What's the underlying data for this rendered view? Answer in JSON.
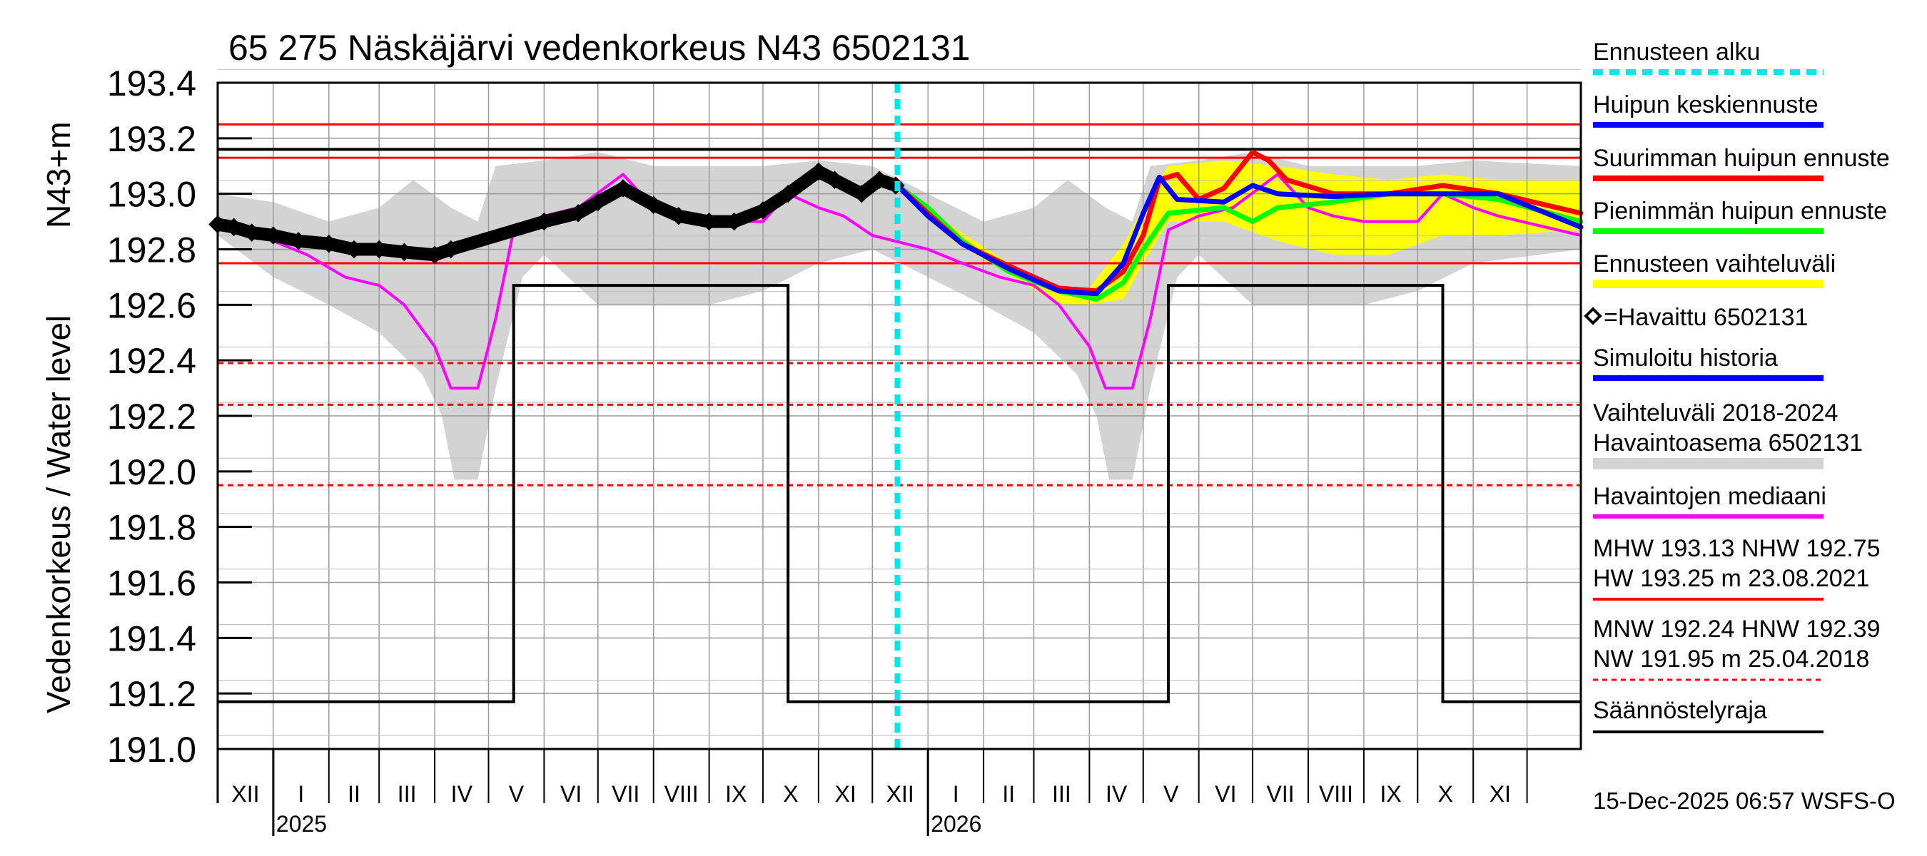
{
  "chart_data": {
    "type": "line",
    "title": "65 275 Näskäjärvi vedenkorkeus N43 6502131",
    "ylabel_main": "Vedenkorkeus / Water level",
    "ylabel_unit": "N43+m",
    "ylim": [
      191.0,
      193.4
    ],
    "y_ticks": [
      "191.0",
      "191.2",
      "191.4",
      "191.6",
      "191.8",
      "192.0",
      "192.2",
      "192.4",
      "192.6",
      "192.8",
      "193.0",
      "193.2",
      "193.4"
    ],
    "x_range": [
      "2024-12-01",
      "2026-12-31"
    ],
    "month_labels": [
      "XII",
      "I",
      "II",
      "III",
      "IV",
      "V",
      "VI",
      "VII",
      "VIII",
      "IX",
      "X",
      "XI",
      "XII",
      "I",
      "II",
      "III",
      "IV",
      "V",
      "VI",
      "VII",
      "VIII",
      "IX",
      "X",
      "XI"
    ],
    "year_labels": [
      {
        "date": "2025-01-01",
        "label": "2025"
      },
      {
        "date": "2026-01-01",
        "label": "2026"
      }
    ],
    "forecast_start": "2025-12-15",
    "reference_lines": {
      "solid_red": [
        193.25,
        193.13,
        192.75
      ],
      "dashed_red": [
        192.39,
        192.24,
        191.95
      ],
      "black_level": 193.16
    },
    "regulation_limit": [
      [
        "2024-12-01",
        191.17
      ],
      [
        "2025-05-15",
        191.17
      ],
      [
        "2025-05-15",
        192.67
      ],
      [
        "2025-10-15",
        192.67
      ],
      [
        "2025-10-15",
        191.17
      ],
      [
        "2026-05-15",
        191.17
      ],
      [
        "2026-05-15",
        192.67
      ],
      [
        "2026-10-15",
        192.67
      ],
      [
        "2026-10-15",
        191.17
      ],
      [
        "2026-12-31",
        191.17
      ]
    ],
    "variation_band": {
      "upper": [
        [
          "2024-12-01",
          193.0
        ],
        [
          "2025-01-01",
          192.97
        ],
        [
          "2025-02-01",
          192.9
        ],
        [
          "2025-03-01",
          192.95
        ],
        [
          "2025-03-20",
          193.05
        ],
        [
          "2025-04-10",
          192.95
        ],
        [
          "2025-04-25",
          192.9
        ],
        [
          "2025-05-05",
          193.1
        ],
        [
          "2025-06-01",
          193.12
        ],
        [
          "2025-07-01",
          193.15
        ],
        [
          "2025-08-01",
          193.1
        ],
        [
          "2025-09-01",
          193.1
        ],
        [
          "2025-10-01",
          193.1
        ],
        [
          "2025-11-01",
          193.12
        ],
        [
          "2025-12-01",
          193.1
        ],
        [
          "2026-01-01",
          193.0
        ],
        [
          "2026-02-01",
          192.9
        ],
        [
          "2026-03-01",
          192.95
        ],
        [
          "2026-03-20",
          193.05
        ],
        [
          "2026-04-10",
          192.95
        ],
        [
          "2026-04-25",
          192.9
        ],
        [
          "2026-05-05",
          193.1
        ],
        [
          "2026-06-01",
          193.12
        ],
        [
          "2026-07-01",
          193.15
        ],
        [
          "2026-08-01",
          193.1
        ],
        [
          "2026-09-01",
          193.1
        ],
        [
          "2026-10-01",
          193.1
        ],
        [
          "2026-11-01",
          193.12
        ],
        [
          "2026-12-31",
          193.1
        ]
      ],
      "lower": [
        [
          "2024-12-01",
          192.85
        ],
        [
          "2025-01-01",
          192.7
        ],
        [
          "2025-02-01",
          192.6
        ],
        [
          "2025-03-01",
          192.5
        ],
        [
          "2025-03-25",
          192.35
        ],
        [
          "2025-04-05",
          192.2
        ],
        [
          "2025-04-12",
          191.97
        ],
        [
          "2025-04-25",
          191.97
        ],
        [
          "2025-05-05",
          192.3
        ],
        [
          "2025-05-20",
          192.7
        ],
        [
          "2025-06-01",
          192.78
        ],
        [
          "2025-07-01",
          192.6
        ],
        [
          "2025-08-01",
          192.6
        ],
        [
          "2025-09-01",
          192.6
        ],
        [
          "2025-10-01",
          192.65
        ],
        [
          "2025-11-01",
          192.75
        ],
        [
          "2025-12-01",
          192.8
        ],
        [
          "2026-01-01",
          192.7
        ],
        [
          "2026-02-01",
          192.6
        ],
        [
          "2026-03-01",
          192.5
        ],
        [
          "2026-03-25",
          192.35
        ],
        [
          "2026-04-05",
          192.2
        ],
        [
          "2026-04-12",
          191.97
        ],
        [
          "2026-04-25",
          191.97
        ],
        [
          "2026-05-05",
          192.3
        ],
        [
          "2026-05-20",
          192.7
        ],
        [
          "2026-06-01",
          192.78
        ],
        [
          "2026-07-01",
          192.6
        ],
        [
          "2026-08-01",
          192.6
        ],
        [
          "2026-09-01",
          192.6
        ],
        [
          "2026-10-01",
          192.65
        ],
        [
          "2026-11-01",
          192.75
        ],
        [
          "2026-12-31",
          192.8
        ]
      ]
    },
    "forecast_band": {
      "upper": [
        [
          "2025-12-15",
          193.03
        ],
        [
          "2026-01-15",
          192.88
        ],
        [
          "2026-02-15",
          192.75
        ],
        [
          "2026-03-15",
          192.66
        ],
        [
          "2026-04-01",
          192.66
        ],
        [
          "2026-04-20",
          192.82
        ],
        [
          "2026-05-01",
          192.95
        ],
        [
          "2026-05-15",
          193.1
        ],
        [
          "2026-06-15",
          193.12
        ],
        [
          "2026-07-15",
          193.1
        ],
        [
          "2026-08-15",
          193.07
        ],
        [
          "2026-09-15",
          193.05
        ],
        [
          "2026-10-15",
          193.07
        ],
        [
          "2026-11-15",
          193.05
        ],
        [
          "2026-12-31",
          193.05
        ]
      ],
      "lower": [
        [
          "2025-12-15",
          193.03
        ],
        [
          "2026-01-15",
          192.83
        ],
        [
          "2026-02-15",
          192.71
        ],
        [
          "2026-03-15",
          192.6
        ],
        [
          "2026-04-01",
          192.6
        ],
        [
          "2026-04-20",
          192.62
        ],
        [
          "2026-05-01",
          192.75
        ],
        [
          "2026-05-15",
          192.9
        ],
        [
          "2026-06-15",
          192.9
        ],
        [
          "2026-07-15",
          192.83
        ],
        [
          "2026-08-15",
          192.78
        ],
        [
          "2026-09-15",
          192.78
        ],
        [
          "2026-10-15",
          192.85
        ],
        [
          "2026-11-15",
          192.85
        ],
        [
          "2026-12-31",
          192.87
        ]
      ]
    },
    "series": [
      {
        "name": "Havaittu 6502131",
        "points": [
          [
            "2024-12-01",
            192.89
          ],
          [
            "2024-12-10",
            192.88
          ],
          [
            "2024-12-20",
            192.86
          ],
          [
            "2025-01-01",
            192.85
          ],
          [
            "2025-01-15",
            192.83
          ],
          [
            "2025-02-01",
            192.82
          ],
          [
            "2025-02-15",
            192.8
          ],
          [
            "2025-03-01",
            192.8
          ],
          [
            "2025-03-15",
            192.79
          ],
          [
            "2025-04-01",
            192.78
          ],
          [
            "2025-04-10",
            192.8
          ],
          [
            "2025-06-01",
            192.9
          ],
          [
            "2025-06-20",
            192.93
          ],
          [
            "2025-07-01",
            192.97
          ],
          [
            "2025-07-15",
            193.02
          ],
          [
            "2025-08-01",
            192.96
          ],
          [
            "2025-08-15",
            192.92
          ],
          [
            "2025-09-01",
            192.9
          ],
          [
            "2025-09-15",
            192.9
          ],
          [
            "2025-10-01",
            192.94
          ],
          [
            "2025-10-15",
            193.0
          ],
          [
            "2025-11-01",
            193.08
          ],
          [
            "2025-11-10",
            193.05
          ],
          [
            "2025-11-25",
            193.0
          ],
          [
            "2025-12-05",
            193.05
          ],
          [
            "2025-12-14",
            193.03
          ]
        ]
      },
      {
        "name": "Simuloitu historia",
        "points": [
          [
            "2025-04-10",
            192.8
          ],
          [
            "2025-05-01",
            192.84
          ],
          [
            "2025-05-20",
            192.88
          ],
          [
            "2025-06-01",
            192.92
          ]
        ]
      },
      {
        "name": "Havaintojen mediaani",
        "points": [
          [
            "2024-12-01",
            192.91
          ],
          [
            "2025-01-01",
            192.83
          ],
          [
            "2025-01-20",
            192.78
          ],
          [
            "2025-02-10",
            192.7
          ],
          [
            "2025-03-01",
            192.67
          ],
          [
            "2025-03-15",
            192.6
          ],
          [
            "2025-04-01",
            192.45
          ],
          [
            "2025-04-10",
            192.3
          ],
          [
            "2025-04-25",
            192.3
          ],
          [
            "2025-05-05",
            192.55
          ],
          [
            "2025-05-15",
            192.87
          ],
          [
            "2025-06-01",
            192.92
          ],
          [
            "2025-06-20",
            192.95
          ],
          [
            "2025-07-15",
            193.07
          ],
          [
            "2025-08-01",
            192.95
          ],
          [
            "2025-08-15",
            192.92
          ],
          [
            "2025-09-01",
            192.9
          ],
          [
            "2025-10-01",
            192.9
          ],
          [
            "2025-10-15",
            193.0
          ],
          [
            "2025-11-01",
            192.95
          ],
          [
            "2025-11-15",
            192.92
          ],
          [
            "2025-12-01",
            192.85
          ],
          [
            "2026-01-01",
            192.8
          ],
          [
            "2026-01-20",
            192.75
          ],
          [
            "2026-02-10",
            192.7
          ],
          [
            "2026-03-01",
            192.67
          ],
          [
            "2026-03-15",
            192.6
          ],
          [
            "2026-04-01",
            192.45
          ],
          [
            "2026-04-10",
            192.3
          ],
          [
            "2026-04-25",
            192.3
          ],
          [
            "2026-05-05",
            192.55
          ],
          [
            "2026-05-15",
            192.87
          ],
          [
            "2026-06-01",
            192.92
          ],
          [
            "2026-06-20",
            192.95
          ],
          [
            "2026-07-15",
            193.07
          ],
          [
            "2026-08-01",
            192.95
          ],
          [
            "2026-08-15",
            192.92
          ],
          [
            "2026-09-01",
            192.9
          ],
          [
            "2026-10-01",
            192.9
          ],
          [
            "2026-10-15",
            193.0
          ],
          [
            "2026-11-01",
            192.95
          ],
          [
            "2026-11-15",
            192.92
          ],
          [
            "2026-12-31",
            192.85
          ]
        ]
      },
      {
        "name": "Pienimmän huipun ennuste",
        "points": [
          [
            "2025-12-15",
            193.03
          ],
          [
            "2026-01-01",
            192.95
          ],
          [
            "2026-01-20",
            192.83
          ],
          [
            "2026-02-15",
            192.72
          ],
          [
            "2026-03-15",
            192.65
          ],
          [
            "2026-04-05",
            192.62
          ],
          [
            "2026-04-20",
            192.68
          ],
          [
            "2026-05-01",
            192.8
          ],
          [
            "2026-05-15",
            192.93
          ],
          [
            "2026-06-15",
            192.95
          ],
          [
            "2026-07-01",
            192.9
          ],
          [
            "2026-07-15",
            192.95
          ],
          [
            "2026-08-15",
            192.97
          ],
          [
            "2026-09-15",
            193.0
          ],
          [
            "2026-10-15",
            193.0
          ],
          [
            "2026-11-15",
            192.98
          ],
          [
            "2026-12-31",
            192.9
          ]
        ]
      },
      {
        "name": "Suurimman huipun ennuste",
        "points": [
          [
            "2025-12-15",
            193.03
          ],
          [
            "2026-01-01",
            192.93
          ],
          [
            "2026-01-20",
            192.82
          ],
          [
            "2026-02-15",
            192.74
          ],
          [
            "2026-03-15",
            192.66
          ],
          [
            "2026-04-05",
            192.65
          ],
          [
            "2026-04-20",
            192.72
          ],
          [
            "2026-05-01",
            192.85
          ],
          [
            "2026-05-10",
            193.05
          ],
          [
            "2026-05-20",
            193.07
          ],
          [
            "2026-06-01",
            192.98
          ],
          [
            "2026-06-15",
            193.02
          ],
          [
            "2026-07-01",
            193.15
          ],
          [
            "2026-07-10",
            193.12
          ],
          [
            "2026-07-20",
            193.05
          ],
          [
            "2026-08-15",
            193.0
          ],
          [
            "2026-09-15",
            193.0
          ],
          [
            "2026-10-15",
            193.03
          ],
          [
            "2026-11-15",
            193.0
          ],
          [
            "2026-12-31",
            192.93
          ]
        ]
      },
      {
        "name": "Huipun keskiennuste",
        "points": [
          [
            "2025-12-15",
            193.03
          ],
          [
            "2026-01-01",
            192.92
          ],
          [
            "2026-01-20",
            192.82
          ],
          [
            "2026-02-15",
            192.73
          ],
          [
            "2026-03-15",
            192.65
          ],
          [
            "2026-04-05",
            192.64
          ],
          [
            "2026-04-20",
            192.75
          ],
          [
            "2026-05-01",
            192.93
          ],
          [
            "2026-05-10",
            193.06
          ],
          [
            "2026-05-20",
            192.98
          ],
          [
            "2026-06-15",
            192.97
          ],
          [
            "2026-07-01",
            193.03
          ],
          [
            "2026-07-15",
            193.0
          ],
          [
            "2026-08-15",
            192.99
          ],
          [
            "2026-09-15",
            193.0
          ],
          [
            "2026-10-15",
            193.0
          ],
          [
            "2026-11-15",
            193.0
          ],
          [
            "2026-12-31",
            192.88
          ]
        ]
      }
    ],
    "legend": {
      "forecast_start": "Ennusteen alku",
      "mean_peak": "Huipun keskiennuste",
      "max_peak": "Suurimman huipun ennuste",
      "min_peak": "Pienimmän huipun ennuste",
      "forecast_range": "Ennusteen vaihteluväli",
      "observed": "=Havaittu 6502131",
      "simulated": "Simuloitu historia",
      "variation_range_1": "Vaihteluväli 2018-2024",
      "variation_range_2": "Havaintoasema 6502131",
      "median": "Havaintojen mediaani",
      "high_stats_1": "MHW 193.13 NHW 192.75",
      "high_stats_2": "HW 193.25 m 23.08.2021",
      "low_stats_1": "MNW 192.24 HNW 192.39",
      "low_stats_2": "NW 191.95 m 25.04.2018",
      "regulation": "Säännöstelyraja"
    },
    "timestamp": "15-Dec-2025 06:57 WSFS-O",
    "colors": {
      "variation_band": "#d3d3d3",
      "forecast_band": "#ffff00",
      "observed": "#000000",
      "simulated": "#0000ff",
      "median": "#ff00ff",
      "mean_peak": "#0000ff",
      "max_peak": "#ff0000",
      "min_peak": "#00ff00",
      "forecast_start": "#00e5e5",
      "reference_red": "#ff0000",
      "regulation": "#000000"
    }
  }
}
